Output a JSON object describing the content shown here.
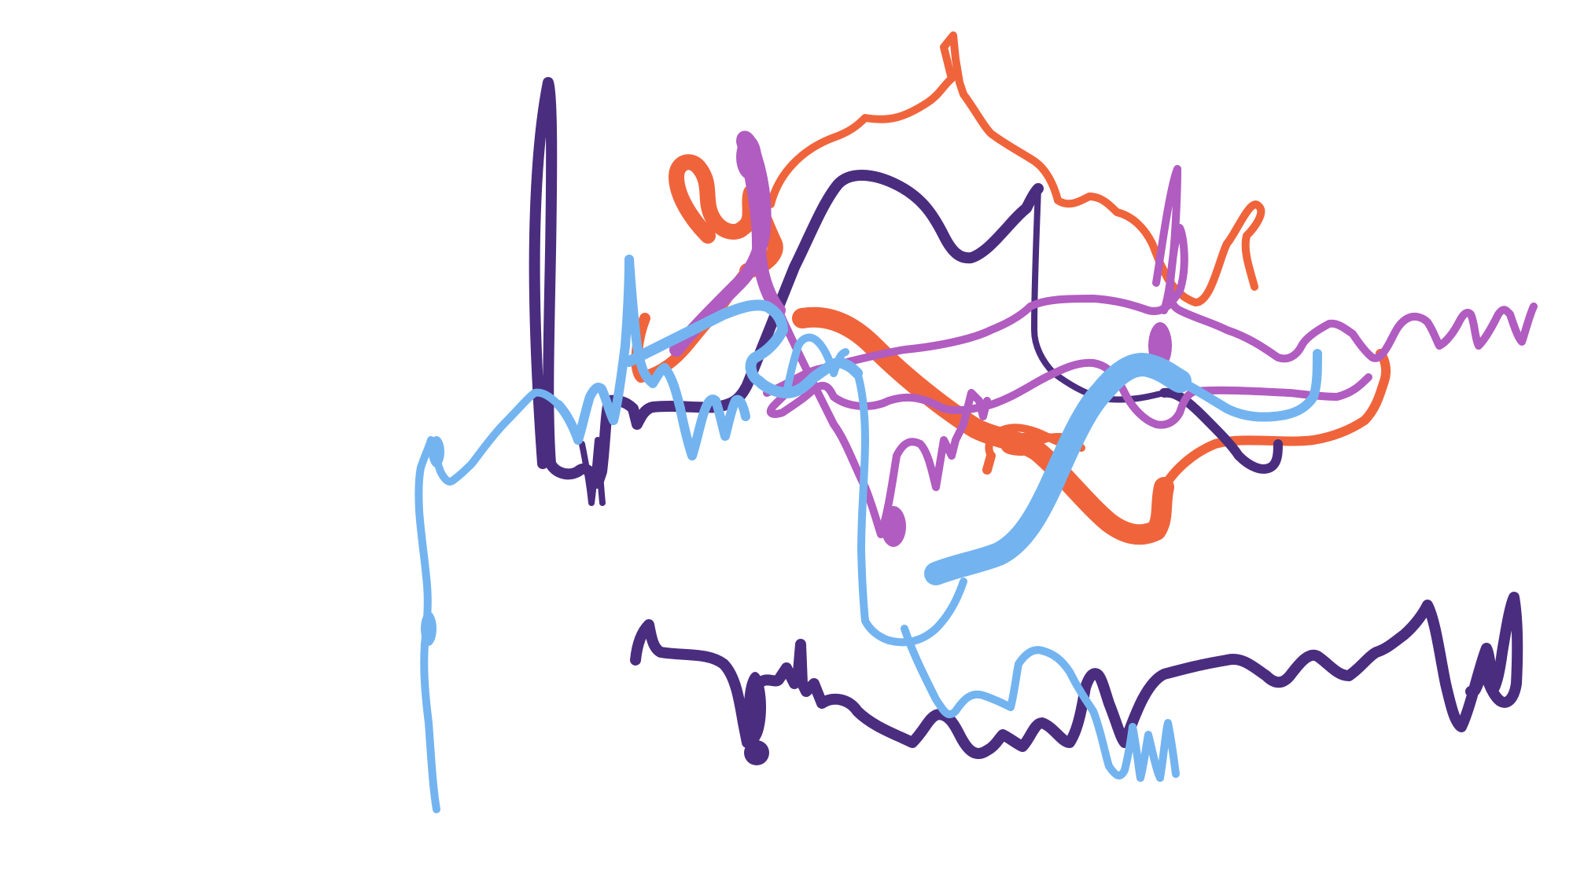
{
  "scene": {
    "kind": "3D ribbon / tube render",
    "background": "#ffffff",
    "strands": [
      {
        "id": "dark-purple",
        "color": "#4b2d7f",
        "shape_lightness": "dark"
      },
      {
        "id": "orange",
        "color": "#f0643c",
        "shape_lightness": "medium"
      },
      {
        "id": "magenta",
        "color": "#b15cc0",
        "shape_lightness": "medium"
      },
      {
        "id": "light-blue",
        "color": "#73b4f0",
        "shape_lightness": "light"
      }
    ]
  }
}
